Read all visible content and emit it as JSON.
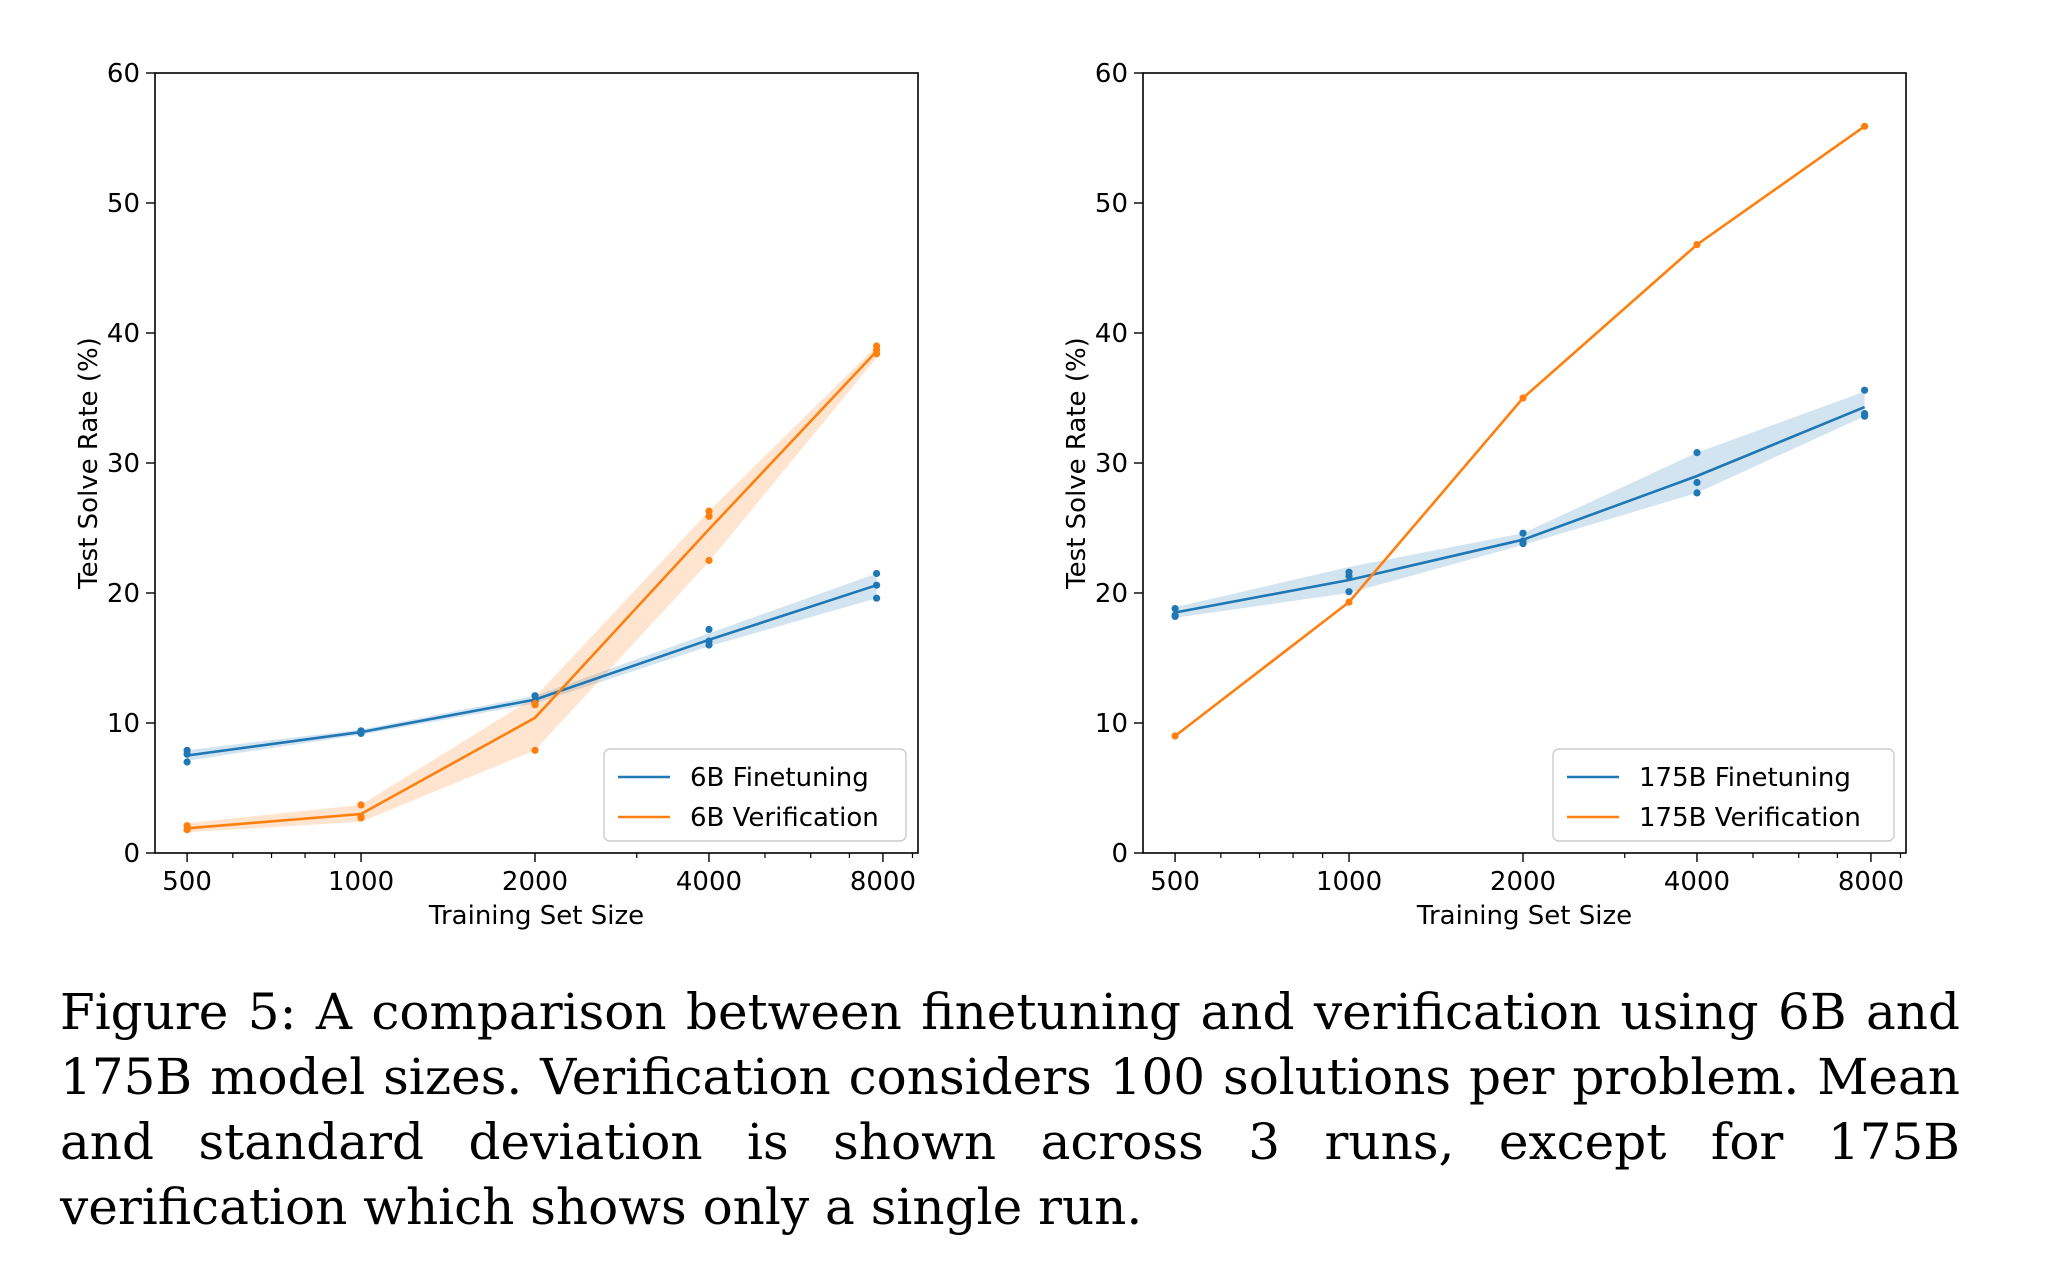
{
  "chart_data": [
    {
      "type": "line",
      "xlabel": "Training Set Size",
      "ylabel": "Test Solve Rate (%)",
      "xscale": "log",
      "xlim": [
        440,
        9200
      ],
      "ylim": [
        0,
        60
      ],
      "xticks": [
        500,
        1000,
        2000,
        4000,
        8000
      ],
      "xtick_labels": [
        "500",
        "1000",
        "2000",
        "4000",
        "8000"
      ],
      "yticks": [
        0,
        10,
        20,
        30,
        40,
        50,
        60
      ],
      "ytick_labels": [
        "0",
        "10",
        "20",
        "30",
        "40",
        "50",
        "60"
      ],
      "grid": false,
      "legend_position": "lower right",
      "series": [
        {
          "name": "6B Finetuning",
          "color": "#1f77b4",
          "x": [
            500,
            1000,
            2000,
            4000,
            7800
          ],
          "mean": [
            7.5,
            9.3,
            11.8,
            16.4,
            20.6
          ],
          "band_low": [
            7.1,
            9.1,
            11.5,
            15.9,
            19.6
          ],
          "band_high": [
            7.9,
            9.5,
            12.1,
            16.9,
            21.5
          ],
          "runs": [
            [
              500,
              7.9
            ],
            [
              500,
              7.6
            ],
            [
              500,
              7.0
            ],
            [
              1000,
              9.3
            ],
            [
              1000,
              9.4
            ],
            [
              1000,
              9.2
            ],
            [
              2000,
              12.1
            ],
            [
              2000,
              11.7
            ],
            [
              2000,
              11.6
            ],
            [
              4000,
              17.2
            ],
            [
              4000,
              16.3
            ],
            [
              4000,
              16.0
            ],
            [
              7800,
              21.5
            ],
            [
              7800,
              20.6
            ],
            [
              7800,
              19.6
            ]
          ]
        },
        {
          "name": "6B Verification",
          "color": "#ff7f0e",
          "x": [
            500,
            1000,
            2000,
            4000,
            7800
          ],
          "mean": [
            1.9,
            3.0,
            10.4,
            24.9,
            38.6
          ],
          "band_low": [
            1.6,
            2.4,
            7.9,
            22.4,
            38.1
          ],
          "band_high": [
            2.3,
            3.7,
            12.0,
            26.3,
            39.0
          ],
          "runs": [
            [
              500,
              2.1
            ],
            [
              500,
              1.8
            ],
            [
              500,
              1.8
            ],
            [
              1000,
              3.7
            ],
            [
              1000,
              2.8
            ],
            [
              1000,
              2.7
            ],
            [
              2000,
              11.5
            ],
            [
              2000,
              11.4
            ],
            [
              2000,
              7.9
            ],
            [
              4000,
              26.3
            ],
            [
              4000,
              25.9
            ],
            [
              4000,
              22.5
            ],
            [
              7800,
              39.0
            ],
            [
              7800,
              38.7
            ],
            [
              7800,
              38.4
            ]
          ]
        }
      ]
    },
    {
      "type": "line",
      "xlabel": "Training Set Size",
      "ylabel": "Test Solve Rate (%)",
      "xscale": "log",
      "xlim": [
        440,
        9200
      ],
      "ylim": [
        0,
        60
      ],
      "xticks": [
        500,
        1000,
        2000,
        4000,
        8000
      ],
      "xtick_labels": [
        "500",
        "1000",
        "2000",
        "4000",
        "8000"
      ],
      "yticks": [
        0,
        10,
        20,
        30,
        40,
        50,
        60
      ],
      "ytick_labels": [
        "0",
        "10",
        "20",
        "30",
        "40",
        "50",
        "60"
      ],
      "grid": false,
      "legend_position": "lower right",
      "series": [
        {
          "name": "175B Finetuning",
          "color": "#1f77b4",
          "x": [
            500,
            1000,
            2000,
            4000,
            7800
          ],
          "mean": [
            18.5,
            21.0,
            24.1,
            29.0,
            34.3
          ],
          "band_low": [
            18.1,
            20.0,
            23.7,
            27.7,
            33.6
          ],
          "band_high": [
            18.9,
            22.0,
            24.6,
            30.8,
            35.5
          ],
          "runs": [
            [
              500,
              18.8
            ],
            [
              500,
              18.3
            ],
            [
              500,
              18.2
            ],
            [
              1000,
              21.6
            ],
            [
              1000,
              21.3
            ],
            [
              1000,
              20.1
            ],
            [
              2000,
              24.6
            ],
            [
              2000,
              24.0
            ],
            [
              2000,
              23.8
            ],
            [
              4000,
              30.8
            ],
            [
              4000,
              28.5
            ],
            [
              4000,
              27.7
            ],
            [
              7800,
              35.6
            ],
            [
              7800,
              33.8
            ],
            [
              7800,
              33.6
            ]
          ]
        },
        {
          "name": "175B Verification",
          "color": "#ff7f0e",
          "x": [
            500,
            1000,
            2000,
            4000,
            7800
          ],
          "mean": [
            9.0,
            19.3,
            35.0,
            46.8,
            55.9
          ],
          "runs": [
            [
              500,
              9.0
            ],
            [
              1000,
              19.3
            ],
            [
              2000,
              35.0
            ],
            [
              4000,
              46.8
            ],
            [
              7800,
              55.9
            ]
          ]
        }
      ]
    }
  ],
  "caption": "Figure 5: A comparison between finetuning and verification using 6B and 175B model sizes. Verification considers 100 solutions per problem. Mean and standard deviation is shown across 3 runs, except for 175B verification which shows only a single run."
}
